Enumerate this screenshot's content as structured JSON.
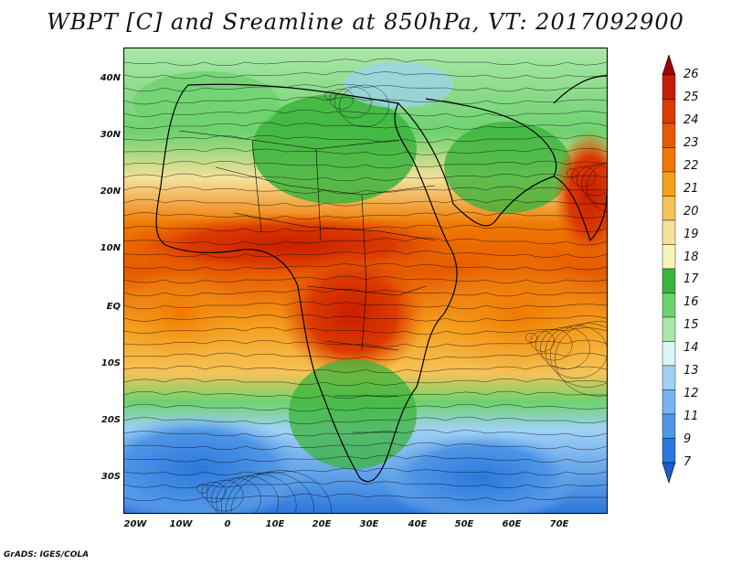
{
  "title": "WBPT [C] and Sreamline at 850hPa, VT: 2017092900",
  "credit": "GrADS: IGES/COLA",
  "map": {
    "variable": "Wet-bulb potential temperature with streamlines",
    "lon_labels": [
      "20W",
      "10W",
      "0",
      "10E",
      "20E",
      "30E",
      "40E",
      "50E",
      "60E",
      "70E"
    ],
    "lat_labels": [
      "40N",
      "30N",
      "20N",
      "10N",
      "EQ",
      "10S",
      "20S",
      "30S"
    ]
  },
  "colorbar": {
    "levels": [
      "26",
      "25",
      "24",
      "23",
      "22",
      "21",
      "20",
      "19",
      "18",
      "17",
      "16",
      "15",
      "14",
      "13",
      "12",
      "11",
      "9",
      "7"
    ],
    "colors": [
      "#a00000",
      "#c81e00",
      "#dc3a00",
      "#e65a00",
      "#f07800",
      "#f5a01e",
      "#f5c35a",
      "#f5e19b",
      "#f5f5be",
      "#3cb43c",
      "#6ed26e",
      "#aae6aa",
      "#dcf5f5",
      "#a0d2f5",
      "#78b4f0",
      "#5096e6",
      "#2d78dc",
      "#1e5ac8"
    ]
  }
}
